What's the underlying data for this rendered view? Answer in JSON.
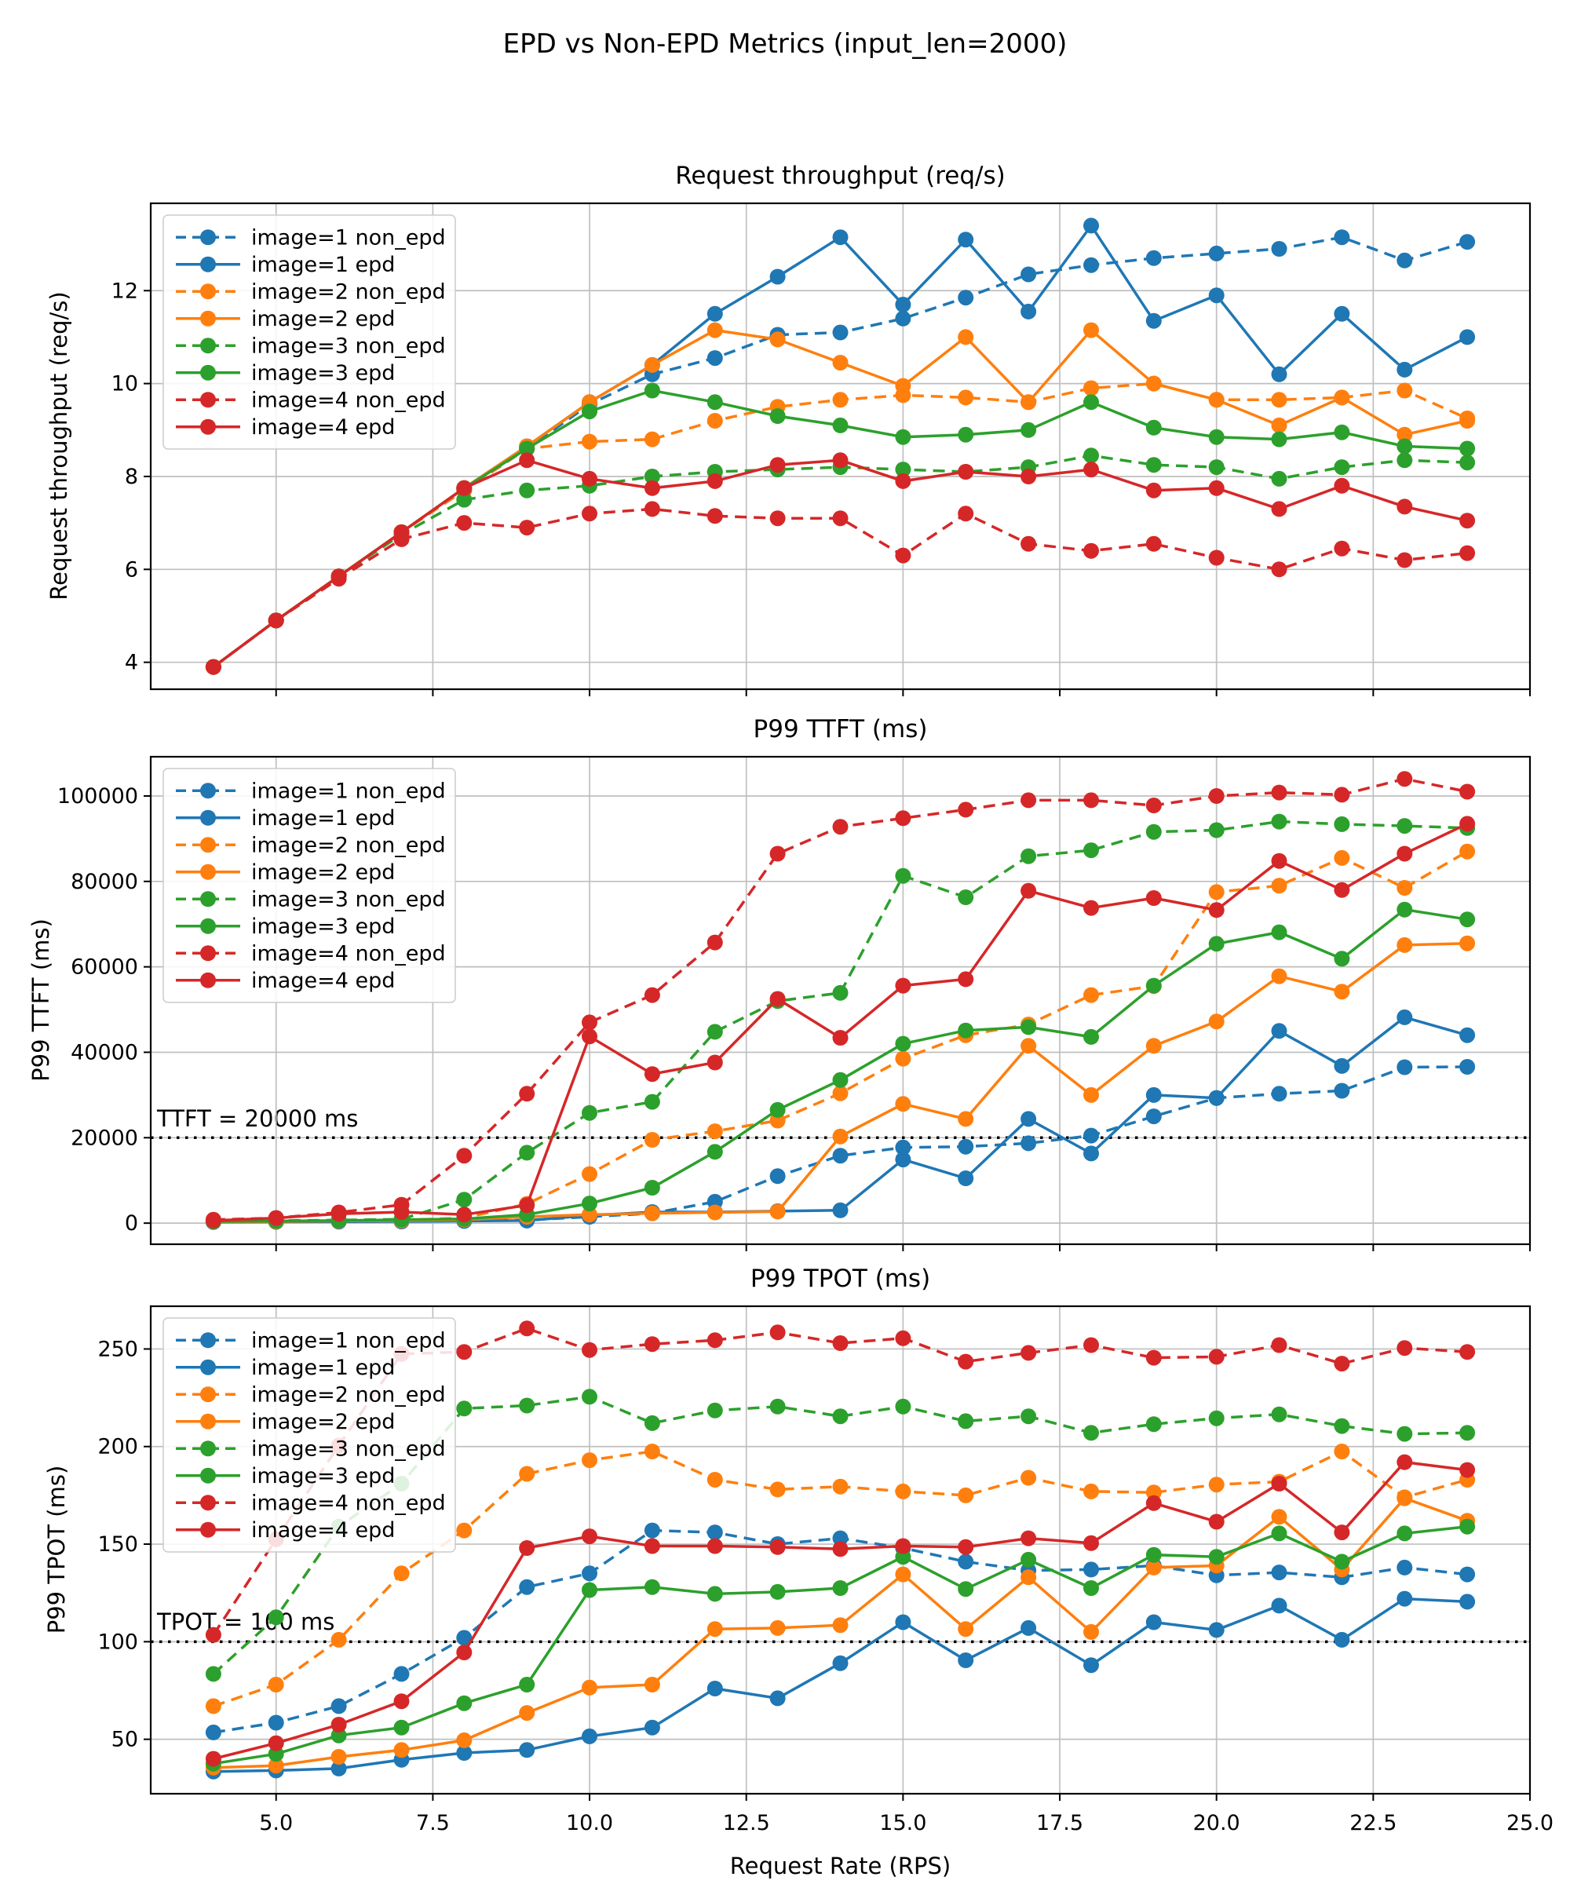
{
  "figure_title": "EPD vs Non-EPD Metrics (input_len=2000)",
  "x_axis": {
    "label": "Request Rate (RPS)",
    "range": [
      3,
      25
    ],
    "tick_values": [
      5,
      7.5,
      10,
      12.5,
      15,
      17.5,
      20,
      22.5,
      25
    ],
    "tick_labels": [
      "5.0",
      "7.5",
      "10.0",
      "12.5",
      "15.0",
      "17.5",
      "20.0",
      "22.5",
      "25.0"
    ]
  },
  "colors": {
    "blue": "#1f77b4",
    "orange": "#ff7f0e",
    "green": "#2ca02c",
    "red": "#d62728",
    "grid": "#bfbfbf",
    "ref_line": "#000000",
    "legend_border": "#cccccc"
  },
  "chart_data": [
    {
      "type": "line",
      "title": "Request throughput (req/s)",
      "xlabel": "",
      "ylabel": "Request throughput (req/s)",
      "x": [
        4,
        5,
        6,
        7,
        8,
        9,
        10,
        11,
        12,
        13,
        14,
        15,
        16,
        17,
        18,
        19,
        20,
        21,
        22,
        23,
        24
      ],
      "ylim": [
        3.42,
        13.88
      ],
      "yticks": [
        4,
        6,
        8,
        10,
        12
      ],
      "ytick_labels": [
        "4",
        "6",
        "8",
        "10",
        "12"
      ],
      "grid": true,
      "legend_position": "upper left",
      "ref_line": null,
      "series": [
        {
          "name": "image=1 non_epd",
          "color": "#1f77b4",
          "dashed": true,
          "values": [
            3.9,
            4.9,
            5.85,
            6.8,
            7.7,
            8.6,
            9.55,
            10.2,
            10.55,
            11.05,
            11.1,
            11.4,
            11.85,
            12.35,
            12.55,
            12.7,
            12.8,
            12.9,
            13.15,
            12.65,
            13.05
          ]
        },
        {
          "name": "image=1 epd",
          "color": "#1f77b4",
          "dashed": false,
          "values": [
            3.9,
            4.9,
            5.85,
            6.8,
            7.75,
            8.65,
            9.6,
            10.4,
            11.5,
            12.3,
            13.15,
            11.7,
            13.1,
            11.55,
            13.4,
            11.35,
            11.9,
            10.2,
            11.5,
            10.3,
            11.0
          ]
        },
        {
          "name": "image=2 non_epd",
          "color": "#ff7f0e",
          "dashed": true,
          "values": [
            3.9,
            4.9,
            5.85,
            6.8,
            7.7,
            8.6,
            8.75,
            8.8,
            9.2,
            9.5,
            9.65,
            9.75,
            9.7,
            9.6,
            9.9,
            10.0,
            9.65,
            9.65,
            9.7,
            9.85,
            9.25
          ]
        },
        {
          "name": "image=2 epd",
          "color": "#ff7f0e",
          "dashed": false,
          "values": [
            3.9,
            4.9,
            5.85,
            6.8,
            7.75,
            8.65,
            9.6,
            10.4,
            11.15,
            10.95,
            10.45,
            9.95,
            11.0,
            9.6,
            11.15,
            10.0,
            9.65,
            9.1,
            9.7,
            8.9,
            9.2
          ]
        },
        {
          "name": "image=3 non_epd",
          "color": "#2ca02c",
          "dashed": true,
          "values": [
            3.9,
            4.9,
            5.85,
            6.75,
            7.5,
            7.7,
            7.8,
            8.0,
            8.1,
            8.15,
            8.2,
            8.15,
            8.1,
            8.2,
            8.45,
            8.25,
            8.2,
            7.95,
            8.2,
            8.35,
            8.3
          ]
        },
        {
          "name": "image=3 epd",
          "color": "#2ca02c",
          "dashed": false,
          "values": [
            3.9,
            4.9,
            5.85,
            6.8,
            7.75,
            8.6,
            9.4,
            9.85,
            9.6,
            9.3,
            9.1,
            8.85,
            8.9,
            9.0,
            9.6,
            9.05,
            8.85,
            8.8,
            8.95,
            8.65,
            8.6
          ]
        },
        {
          "name": "image=4 non_epd",
          "color": "#d62728",
          "dashed": true,
          "values": [
            3.9,
            4.9,
            5.8,
            6.65,
            7.0,
            6.9,
            7.2,
            7.3,
            7.15,
            7.1,
            7.1,
            6.3,
            7.2,
            6.55,
            6.4,
            6.55,
            6.25,
            6.0,
            6.45,
            6.2,
            6.35
          ]
        },
        {
          "name": "image=4 epd",
          "color": "#d62728",
          "dashed": false,
          "values": [
            3.9,
            4.9,
            5.85,
            6.8,
            7.75,
            8.35,
            7.95,
            7.75,
            7.9,
            8.25,
            8.35,
            7.9,
            8.1,
            8.0,
            8.15,
            7.7,
            7.75,
            7.3,
            7.8,
            7.35,
            7.05
          ]
        }
      ]
    },
    {
      "type": "line",
      "title": "P99 TTFT (ms)",
      "xlabel": "",
      "ylabel": "P99 TTFT (ms)",
      "x": [
        4,
        5,
        6,
        7,
        8,
        9,
        10,
        11,
        12,
        13,
        14,
        15,
        16,
        17,
        18,
        19,
        20,
        21,
        22,
        23,
        24
      ],
      "ylim": [
        -4937,
        109187
      ],
      "yticks": [
        0,
        20000,
        40000,
        60000,
        80000,
        100000
      ],
      "ytick_labels": [
        "0",
        "20000",
        "40000",
        "60000",
        "80000",
        "100000"
      ],
      "grid": true,
      "legend_position": "upper left",
      "ref_line": {
        "value": 20000,
        "label": "TTFT = 20000 ms"
      },
      "series": [
        {
          "name": "image=1 non_epd",
          "color": "#1f77b4",
          "dashed": true,
          "values": [
            300,
            350,
            400,
            450,
            550,
            700,
            1500,
            2300,
            5000,
            11000,
            15800,
            17700,
            17900,
            18700,
            20500,
            25000,
            29300,
            30300,
            31000,
            36500,
            36600
          ]
        },
        {
          "name": "image=1 epd",
          "color": "#1f77b4",
          "dashed": false,
          "values": [
            250,
            300,
            350,
            400,
            500,
            600,
            1800,
            2600,
            2600,
            2800,
            3000,
            14900,
            10500,
            24400,
            16300,
            30000,
            29300,
            45000,
            36800,
            48200,
            44000
          ]
        },
        {
          "name": "image=2 non_epd",
          "color": "#ff7f0e",
          "dashed": true,
          "values": [
            400,
            500,
            600,
            700,
            1200,
            4500,
            11500,
            19500,
            21500,
            24000,
            30400,
            38500,
            44000,
            46500,
            53400,
            55500,
            77500,
            79000,
            85500,
            78500,
            87000
          ]
        },
        {
          "name": "image=2 epd",
          "color": "#ff7f0e",
          "dashed": false,
          "values": [
            350,
            400,
            500,
            600,
            800,
            1500,
            2000,
            2300,
            2500,
            2700,
            20300,
            27900,
            24400,
            41500,
            30000,
            41500,
            47200,
            57800,
            54200,
            65100,
            65500
          ]
        },
        {
          "name": "image=3 non_epd",
          "color": "#2ca02c",
          "dashed": true,
          "values": [
            500,
            600,
            700,
            900,
            5500,
            16500,
            25800,
            28400,
            44800,
            52000,
            53900,
            81300,
            76300,
            85900,
            87300,
            91600,
            92000,
            94000,
            93400,
            93000,
            92500
          ]
        },
        {
          "name": "image=3 epd",
          "color": "#2ca02c",
          "dashed": false,
          "values": [
            400,
            500,
            600,
            800,
            1000,
            2000,
            4600,
            8300,
            16700,
            26500,
            33500,
            42000,
            45100,
            45900,
            43600,
            55600,
            65400,
            68100,
            61900,
            73400,
            71100
          ]
        },
        {
          "name": "image=4 non_epd",
          "color": "#d62728",
          "dashed": true,
          "values": [
            800,
            1200,
            2500,
            4300,
            15800,
            30300,
            47000,
            53400,
            65700,
            86500,
            92800,
            94800,
            96800,
            99000,
            99000,
            97800,
            100000,
            100800,
            100300,
            104000,
            101000
          ]
        },
        {
          "name": "image=4 epd",
          "color": "#d62728",
          "dashed": false,
          "values": [
            600,
            1200,
            2200,
            2600,
            2000,
            4200,
            43700,
            34900,
            37600,
            52500,
            43400,
            55600,
            57100,
            77800,
            73800,
            76100,
            73300,
            84800,
            78000,
            86500,
            93500
          ]
        }
      ]
    },
    {
      "type": "line",
      "title": "P99 TPOT (ms)",
      "xlabel": "Request Rate (RPS)",
      "ylabel": "P99 TPOT (ms)",
      "x": [
        4,
        5,
        6,
        7,
        8,
        9,
        10,
        11,
        12,
        13,
        14,
        15,
        16,
        17,
        18,
        19,
        20,
        21,
        22,
        23,
        24
      ],
      "ylim": [
        22.1,
        271.9
      ],
      "yticks": [
        50,
        100,
        150,
        200,
        250
      ],
      "ytick_labels": [
        "50",
        "100",
        "150",
        "200",
        "250"
      ],
      "grid": true,
      "legend_position": "upper left",
      "ref_line": {
        "value": 100,
        "label": "TPOT = 100 ms"
      },
      "series": [
        {
          "name": "image=1 non_epd",
          "color": "#1f77b4",
          "dashed": true,
          "values": [
            53.5,
            58.5,
            67,
            83.5,
            102,
            128,
            135,
            157,
            156,
            150,
            153,
            148,
            141,
            136.5,
            137,
            139,
            134,
            135.5,
            133,
            138,
            134.5
          ]
        },
        {
          "name": "image=1 epd",
          "color": "#1f77b4",
          "dashed": false,
          "values": [
            33.5,
            34,
            35,
            39.5,
            43,
            44.5,
            51.5,
            56,
            76,
            71,
            89,
            110,
            90.5,
            107,
            88,
            110,
            106,
            118.5,
            101,
            122,
            120.5
          ]
        },
        {
          "name": "image=2 non_epd",
          "color": "#ff7f0e",
          "dashed": true,
          "values": [
            67,
            78,
            101,
            135,
            157,
            186,
            193,
            197.5,
            183,
            178,
            179.5,
            177,
            175,
            184,
            177,
            176.5,
            180.5,
            182,
            197.5,
            174,
            183
          ]
        },
        {
          "name": "image=2 epd",
          "color": "#ff7f0e",
          "dashed": false,
          "values": [
            35.5,
            36.5,
            41,
            44.5,
            49.5,
            63.5,
            76.5,
            78,
            106.5,
            107,
            108.5,
            134.5,
            106.5,
            133,
            105,
            138,
            139,
            164,
            137,
            173.5,
            162
          ]
        },
        {
          "name": "image=3 non_epd",
          "color": "#2ca02c",
          "dashed": true,
          "values": [
            83.5,
            112.5,
            159,
            181,
            219.5,
            221,
            225.5,
            212,
            218.5,
            220.5,
            215.5,
            220.5,
            213,
            215.5,
            207,
            211.5,
            214.5,
            216.5,
            210.5,
            206.5,
            207
          ]
        },
        {
          "name": "image=3 epd",
          "color": "#2ca02c",
          "dashed": false,
          "values": [
            37.5,
            42.5,
            52,
            56,
            68.5,
            78,
            126.5,
            128,
            124.5,
            125.5,
            127.5,
            143.5,
            127,
            142,
            127.5,
            144.5,
            143.5,
            155.5,
            141,
            155.5,
            159
          ]
        },
        {
          "name": "image=4 non_epd",
          "color": "#d62728",
          "dashed": true,
          "values": [
            103.5,
            152.5,
            200.5,
            247.5,
            248.5,
            260.5,
            249.5,
            252.5,
            254.5,
            258.5,
            253,
            255.5,
            243.5,
            248,
            252,
            245.5,
            246,
            252,
            242.5,
            250.5,
            248.5
          ]
        },
        {
          "name": "image=4 epd",
          "color": "#d62728",
          "dashed": false,
          "values": [
            40,
            48,
            57.5,
            69.5,
            94.5,
            148,
            154,
            149,
            149,
            148.5,
            147.5,
            149,
            148.5,
            153,
            150.5,
            171,
            161.5,
            181,
            156,
            192,
            188
          ]
        }
      ]
    }
  ]
}
